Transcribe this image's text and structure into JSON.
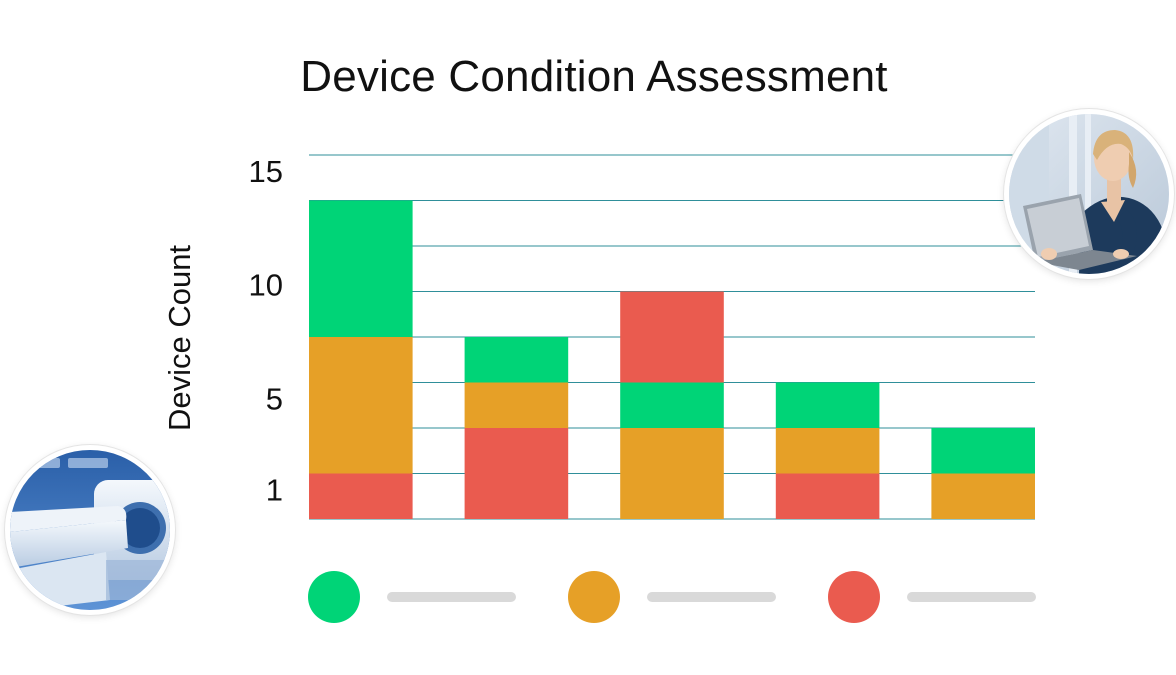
{
  "chart_data": {
    "type": "bar",
    "stacked": true,
    "title": "Device Condition Assessment",
    "xlabel": "",
    "ylabel": "Device Count",
    "ylim": [
      0,
      16
    ],
    "yticks": [
      1,
      5,
      10,
      15
    ],
    "grid": true,
    "legend_placement": "bottom",
    "categories": [
      "",
      "",
      "",
      "",
      ""
    ],
    "series": [
      {
        "color": "#ea5b4f",
        "values": [
          2,
          4,
          0,
          2,
          0
        ]
      },
      {
        "color": "#e6a027",
        "values": [
          6,
          2,
          4,
          2,
          2
        ]
      },
      {
        "color": "#00d477",
        "values": [
          6,
          2,
          2,
          2,
          2
        ]
      },
      {
        "color": "#ea5b4f",
        "values": [
          0,
          0,
          4,
          0,
          0
        ]
      }
    ],
    "legend": [
      {
        "color": "#00d477"
      },
      {
        "color": "#e6a027"
      },
      {
        "color": "#ea5b4f"
      }
    ]
  },
  "images": {
    "nurse_photo": "nurse-with-laptop-photo",
    "mri_photo": "mri-scanner-photo"
  }
}
